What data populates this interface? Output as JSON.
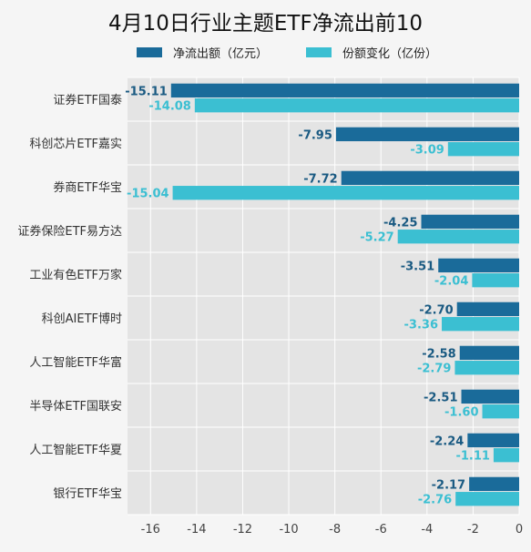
{
  "chart_data": {
    "type": "bar",
    "orientation": "horizontal",
    "title": "4月10日行业主题ETF净流出前10",
    "xlabel": "",
    "ylabel": "",
    "xlim": [
      -17,
      0
    ],
    "xticks": [
      -16,
      -14,
      -12,
      -10,
      -8,
      -6,
      -4,
      -2,
      0
    ],
    "grid": true,
    "legend_position": "top",
    "categories": [
      "证券ETF国泰",
      "科创芯片ETF嘉实",
      "券商ETF华宝",
      "证券保险ETF易方达",
      "工业有色ETF万家",
      "科创AIETF博时",
      "人工智能ETF华富",
      "半导体ETF国联安",
      "人工智能ETF华夏",
      "银行ETF华宝"
    ],
    "series": [
      {
        "name": "净流出额（亿元）",
        "color": "#1a6b9a",
        "values": [
          -15.11,
          -7.95,
          -7.72,
          -4.25,
          -3.51,
          -2.7,
          -2.58,
          -2.51,
          -2.24,
          -2.17
        ]
      },
      {
        "name": "份额变化（亿份）",
        "color": "#3bbfd2",
        "values": [
          -14.08,
          -3.09,
          -15.04,
          -5.27,
          -2.04,
          -3.36,
          -2.79,
          -1.6,
          -1.11,
          -2.76
        ]
      }
    ],
    "data_labels": [
      [
        "-15.11",
        "-7.95",
        "-7.72",
        "-4.25",
        "-3.51",
        "-2.70",
        "-2.58",
        "-2.51",
        "-2.24",
        "-2.17"
      ],
      [
        "-14.08",
        "-3.09",
        "-15.04",
        "-5.27",
        "-2.04",
        "-3.36",
        "-2.79",
        "-1.60",
        "-1.11",
        "-2.76"
      ]
    ]
  }
}
